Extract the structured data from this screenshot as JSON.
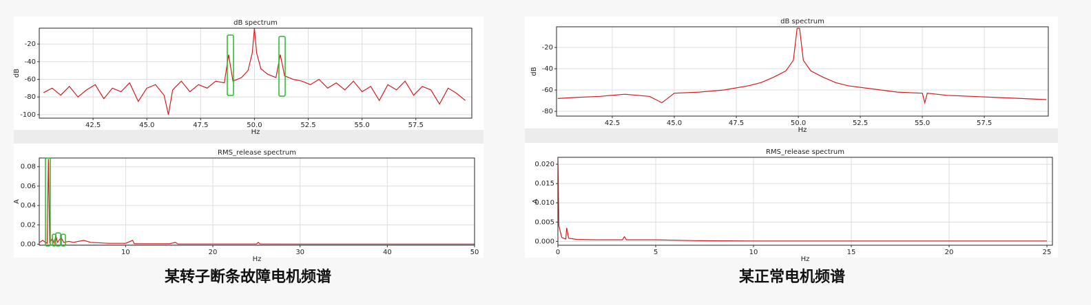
{
  "chart_data": [
    {
      "type": "line",
      "title": "dB spectrum",
      "ylabel": "dB",
      "xlabel": "Hz",
      "xlim": [
        40,
        60.1
      ],
      "ylim": [
        -104,
        -2
      ],
      "xticks": [
        42.5,
        {
          "value": 45,
          "label": "45.0"
        },
        47.5,
        {
          "value": 50,
          "label": "50.0"
        },
        52.5,
        {
          "value": 55,
          "label": "55.0"
        },
        57.5
      ],
      "yticks": [
        -20,
        -40,
        -60,
        -80,
        -100
      ],
      "grid": true,
      "series": [
        {
          "color": "#d7191c",
          "x": [
            40.2,
            40.6,
            41.0,
            41.4,
            41.8,
            42.2,
            42.6,
            43.0,
            43.4,
            43.8,
            44.2,
            44.6,
            45.0,
            45.4,
            45.8,
            46.0,
            46.2,
            46.6,
            47.0,
            47.4,
            47.8,
            48.2,
            48.6,
            48.8,
            49.0,
            49.4,
            49.7,
            49.9,
            50.0,
            50.1,
            50.3,
            50.6,
            51.0,
            51.2,
            51.4,
            51.8,
            52.2,
            52.6,
            53.0,
            53.4,
            53.8,
            54.2,
            54.6,
            55.0,
            55.4,
            55.8,
            56.2,
            56.6,
            57.0,
            57.4,
            57.8,
            58.2,
            58.6,
            59.0,
            59.4,
            59.8
          ],
          "values": [
            -75,
            -70,
            -78,
            -68,
            -80,
            -72,
            -66,
            -82,
            -70,
            -74,
            -64,
            -85,
            -70,
            -66,
            -78,
            -100,
            -72,
            -62,
            -74,
            -66,
            -70,
            -62,
            -64,
            -32,
            -62,
            -58,
            -50,
            -30,
            -2,
            -30,
            -48,
            -54,
            -58,
            -32,
            -56,
            -60,
            -62,
            -66,
            -60,
            -70,
            -64,
            -72,
            -62,
            -74,
            -68,
            -84,
            -66,
            -72,
            -62,
            -78,
            -68,
            -72,
            -88,
            -70,
            -76,
            -84
          ]
        }
      ]
    },
    {
      "type": "line",
      "title": "RMS_release spectrum",
      "ylabel": "A",
      "xlabel": "Hz",
      "xlim": [
        0.1,
        50
      ],
      "ylim": [
        -0.001,
        0.089
      ],
      "xticks": [
        10,
        20,
        30,
        40,
        50
      ],
      "yticks": [
        {
          "value": 0,
          "label": "0.00"
        },
        0.02,
        0.04,
        0.06,
        0.08
      ],
      "grid": true,
      "series": [
        {
          "color": "#d7191c",
          "x": [
            0.15,
            0.5,
            0.8,
            1.0,
            1.15,
            1.3,
            1.6,
            1.8,
            2.0,
            2.2,
            2.6,
            2.9,
            3.5,
            4,
            5.2,
            6,
            8,
            10,
            10.8,
            11,
            15,
            15.7,
            16,
            20,
            25,
            25.2,
            25.4,
            30,
            40,
            50
          ],
          "values": [
            0.002,
            0.004,
            0.002,
            0.001,
            0.088,
            0.002,
            0.006,
            0.001,
            0.009,
            0.002,
            0.007,
            0.002,
            0.003,
            0.002,
            0.004,
            0.002,
            0.001,
            0.001,
            0.004,
            0.0005,
            0.0005,
            0.002,
            0.0003,
            0.0003,
            0.0003,
            0.002,
            0.0003,
            0.0002,
            0.0002,
            0.0002
          ]
        }
      ]
    },
    {
      "type": "line",
      "title": "dB spectrum",
      "ylabel": "dB",
      "xlabel": "Hz",
      "xlim": [
        40.25,
        60.08
      ],
      "ylim": [
        -84.5,
        -0.6
      ],
      "xticks": [
        42.5,
        {
          "value": 45,
          "label": "45.0"
        },
        47.5,
        {
          "value": 50,
          "label": "50.0"
        },
        52.5,
        {
          "value": 55,
          "label": "55.0"
        },
        57.5
      ],
      "yticks": [
        -20,
        -40,
        -60,
        -80
      ],
      "grid": true,
      "series": [
        {
          "color": "#d7191c",
          "x": [
            40.3,
            41,
            42,
            43,
            44,
            44.5,
            45,
            46,
            47,
            48,
            48.5,
            49,
            49.5,
            49.8,
            49.95,
            50.05,
            50.2,
            50.5,
            51,
            51.5,
            52,
            53,
            54,
            55,
            55.1,
            55.2,
            56,
            57,
            58,
            59,
            60
          ],
          "values": [
            -68,
            -67,
            -66,
            -64,
            -66,
            -72,
            -63,
            -62,
            -60,
            -56,
            -53,
            -48,
            -42,
            -32,
            -2,
            -2,
            -32,
            -42,
            -48,
            -53,
            -56,
            -59,
            -62,
            -63,
            -72,
            -63,
            -65,
            -66,
            -67,
            -68,
            -69
          ]
        }
      ]
    },
    {
      "type": "line",
      "title": "RMS_release spectrum",
      "ylabel": "A",
      "xlabel": "Hz",
      "xlim": [
        0,
        25.28
      ],
      "ylim": [
        -0.001,
        0.0218
      ],
      "xticks": [
        0,
        5,
        10,
        15,
        20,
        25
      ],
      "yticks": [
        {
          "value": 0,
          "label": "0.000"
        },
        0.005,
        {
          "value": 0.01,
          "label": "0.010"
        },
        0.015,
        {
          "value": 0.02,
          "label": "0.020"
        }
      ],
      "grid": true,
      "series": [
        {
          "color": "#d7191c",
          "x": [
            0,
            0.05,
            0.2,
            0.4,
            0.45,
            0.55,
            1,
            2,
            3.3,
            3.4,
            3.5,
            5,
            7,
            10,
            15,
            20,
            25
          ],
          "values": [
            0.021,
            0.004,
            0.001,
            0.0006,
            0.0035,
            0.0008,
            0.0005,
            0.0004,
            0.0004,
            0.0012,
            0.0004,
            0.0004,
            0.0002,
            0.0001,
            0.0001,
            0.0001,
            0.0001
          ]
        }
      ]
    }
  ],
  "captions": [
    "某转子断条故障电机频谱",
    "某正常电机频谱"
  ]
}
